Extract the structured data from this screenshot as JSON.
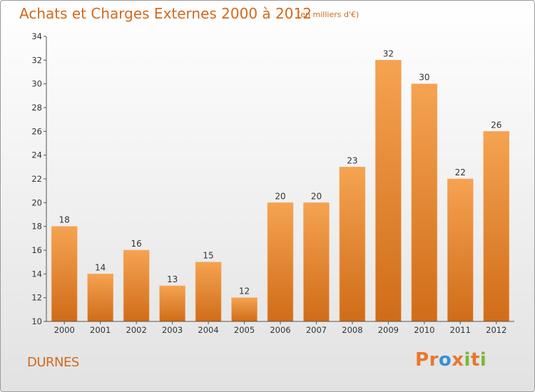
{
  "chart_data": {
    "type": "bar",
    "title": "Achats et Charges Externes 2000 à 2012",
    "subtitle": "(en milliers d'€)",
    "categories": [
      "2000",
      "2001",
      "2002",
      "2003",
      "2004",
      "2005",
      "2006",
      "2007",
      "2008",
      "2009",
      "2010",
      "2011",
      "2012"
    ],
    "values": [
      18,
      14,
      16,
      13,
      15,
      12,
      20,
      20,
      23,
      32,
      30,
      22,
      26
    ],
    "ylim": [
      10,
      34
    ],
    "yticks": [
      10,
      12,
      14,
      16,
      18,
      20,
      22,
      24,
      26,
      28,
      30,
      32,
      34
    ],
    "xlabel": "",
    "ylabel": "",
    "grid": false,
    "legend": "none",
    "bar_color_top": "#f5a352",
    "bar_color_bottom": "#d06c18",
    "label_color": "#333333",
    "axis_color": "#555555"
  },
  "footer": {
    "commune": "DURNES",
    "logo_text": "Proxiti",
    "logo_colors": [
      "#e8772e",
      "#e8772e",
      "#3a8fd4",
      "#e8772e",
      "#7ab83c",
      "#e8772e",
      "#7ab83c"
    ]
  },
  "colors": {
    "title": "#d2691e"
  }
}
